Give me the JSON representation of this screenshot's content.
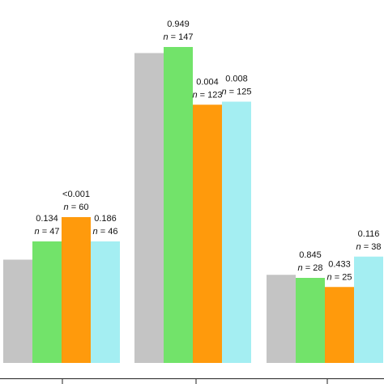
{
  "chart_data": {
    "type": "bar",
    "title": "",
    "xlabel": "",
    "ylabel": "",
    "colors": [
      "#c4c4c4",
      "#72e36a",
      "#ff9a0c",
      "#a4eef2"
    ],
    "groups": [
      {
        "values": [
          34,
          40,
          48,
          40
        ],
        "annotations": [
          null,
          {
            "p": "0.134",
            "n": "47"
          },
          {
            "p": "<0.001",
            "n": "60"
          },
          {
            "p": "0.186",
            "n": "46"
          }
        ]
      },
      {
        "values": [
          102,
          104,
          85,
          86
        ],
        "annotations": [
          null,
          {
            "p": "0.949",
            "n": "147"
          },
          {
            "p": "0.004",
            "n": "123"
          },
          {
            "p": "0.008",
            "n": "125"
          }
        ]
      },
      {
        "values": [
          29,
          28,
          25,
          35
        ],
        "annotations": [
          null,
          {
            "p": "0.845",
            "n": "28"
          },
          {
            "p": "0.433",
            "n": "25"
          },
          {
            "p": "0.116",
            "n": "38"
          }
        ]
      }
    ]
  }
}
